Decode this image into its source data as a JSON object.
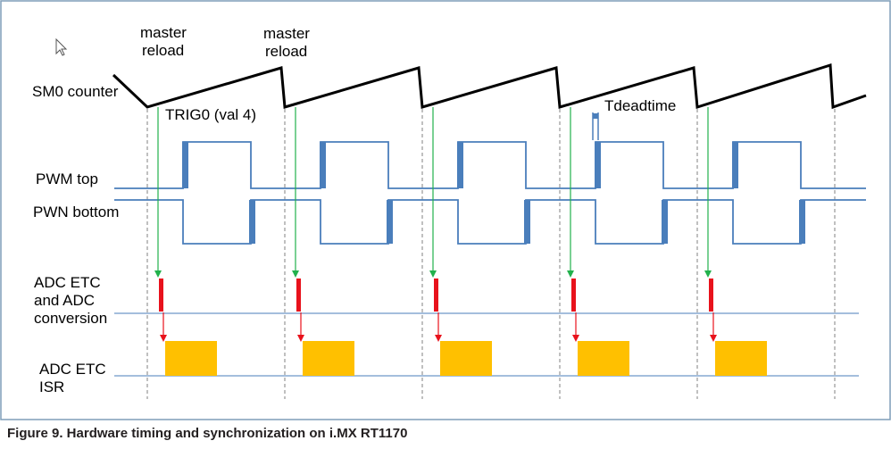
{
  "signal_labels": {
    "sm0_counter": "SM0 counter",
    "pwm_top": "PWM top",
    "pwm_bottom": "PWN bottom",
    "adc_conversion": [
      "ADC ETC",
      "and ADC",
      "conversion"
    ],
    "adc_isr": [
      "ADC ETC",
      "ISR"
    ]
  },
  "annotations": {
    "master_reload_1": [
      "master",
      "reload"
    ],
    "master_reload_2": [
      "master",
      "reload"
    ],
    "trig0": "TRIG0 (val 4)",
    "tdeadtime": "Tdeadtime"
  },
  "caption": "Figure 9.  Hardware timing and synchronization on i.MX RT1170",
  "periods_shown": 5,
  "colors": {
    "signal_line": "#4a7ebb",
    "counter_line": "#000000",
    "trigger_arrow": "#22b14c",
    "adc_pulse": "#e8121c",
    "isr_block": "#ffc000",
    "border": "#7f9db9",
    "guide_line": "#808080"
  },
  "cursor_icon": "mouse-pointer-icon"
}
